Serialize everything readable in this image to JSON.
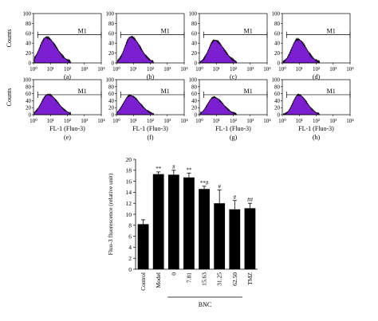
{
  "chart_data": [
    {
      "type": "area",
      "panels": [
        {
          "label": "(a)",
          "gate": "M1",
          "peak": 0.75,
          "peak_height": 52,
          "spread_left": 0.38,
          "spread_right": 0.6
        },
        {
          "label": "(b)",
          "gate": "M1",
          "peak": 0.85,
          "peak_height": 53,
          "spread_left": 0.35,
          "spread_right": 0.55
        },
        {
          "label": "(c)",
          "gate": "M1",
          "peak": 0.9,
          "peak_height": 46,
          "spread_left": 0.35,
          "spread_right": 0.55
        },
        {
          "label": "(d)",
          "gate": "M1",
          "peak": 0.9,
          "peak_height": 48,
          "spread_left": 0.35,
          "spread_right": 0.52
        },
        {
          "label": "(e)",
          "gate": "M1",
          "peak": 0.85,
          "peak_height": 58,
          "spread_left": 0.38,
          "spread_right": 0.58
        },
        {
          "label": "(f)",
          "gate": "M1",
          "peak": 0.8,
          "peak_height": 55,
          "spread_left": 0.38,
          "spread_right": 0.58
        },
        {
          "label": "(g)",
          "gate": "M1",
          "peak": 0.85,
          "peak_height": 50,
          "spread_left": 0.36,
          "spread_right": 0.55
        },
        {
          "label": "(h)",
          "gate": "M1",
          "peak": 0.95,
          "peak_height": 57,
          "spread_left": 0.32,
          "spread_right": 0.5
        }
      ],
      "ylabel": "Counts",
      "xlabel": "FL-1 (Fluo-3)",
      "yticks": [
        0,
        20,
        40,
        60,
        80,
        100
      ],
      "xticks": [
        "10⁰",
        "10¹",
        "10²",
        "10³",
        "10⁴"
      ],
      "ylim": [
        0,
        100
      ],
      "xlim_log10": [
        0,
        4
      ],
      "gate_range_log10": [
        0.25,
        4.0
      ],
      "fill_color": "#7b1fd0",
      "line_color": "#000000"
    },
    {
      "type": "bar",
      "categories": [
        "Control",
        "Model",
        "0",
        "7.81",
        "15.63",
        "31.25",
        "62.50",
        "TMZ"
      ],
      "values": [
        8.2,
        17.3,
        17.2,
        16.7,
        14.6,
        12.0,
        10.9,
        11.1
      ],
      "errors": [
        0.8,
        0.4,
        0.8,
        0.8,
        0.5,
        2.4,
        1.6,
        0.9
      ],
      "annotations": [
        "",
        "**",
        "#",
        "**",
        "**#",
        "#",
        "#",
        "##"
      ],
      "ylabel": "Fluo-3 fluorescence (relative unit)",
      "yticks": [
        0,
        2,
        4,
        6,
        8,
        10,
        12,
        14,
        16,
        18,
        20
      ],
      "ylim": [
        0,
        20
      ],
      "group_label": "BNC",
      "bar_color": "#000000"
    }
  ]
}
